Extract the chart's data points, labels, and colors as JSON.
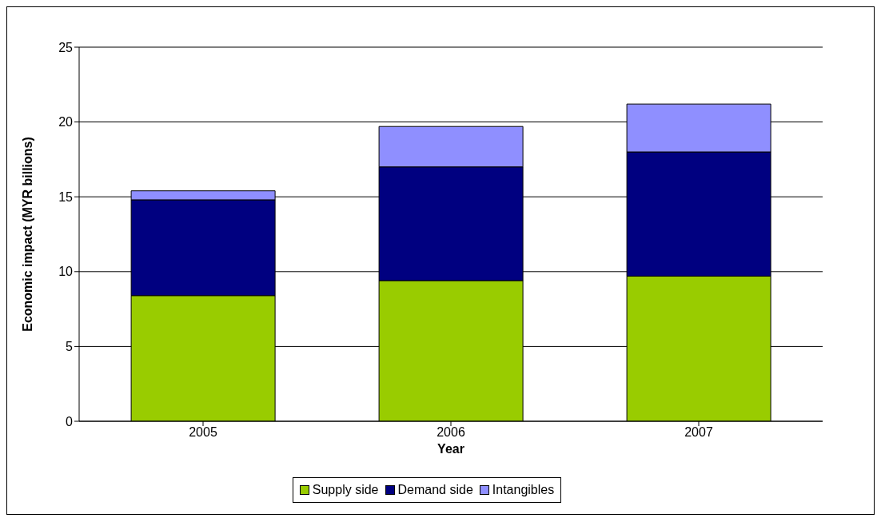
{
  "chart_data": {
    "type": "bar",
    "stacked": true,
    "xlabel": "Year",
    "ylabel": "Economic impact (MYR billions)",
    "categories": [
      "2005",
      "2006",
      "2007"
    ],
    "series": [
      {
        "name": "Supply side",
        "color": "#99cc00",
        "values": [
          8.4,
          9.4,
          9.7
        ]
      },
      {
        "name": "Demand side",
        "color": "#000080",
        "values": [
          6.4,
          7.6,
          8.3
        ]
      },
      {
        "name": "Intangibles",
        "color": "#8f8fff",
        "values": [
          0.6,
          2.7,
          3.2
        ]
      }
    ],
    "ylim": [
      0,
      25
    ],
    "yticks": [
      0,
      5,
      10,
      15,
      20,
      25
    ],
    "grid": "y",
    "legend": "bottom"
  }
}
